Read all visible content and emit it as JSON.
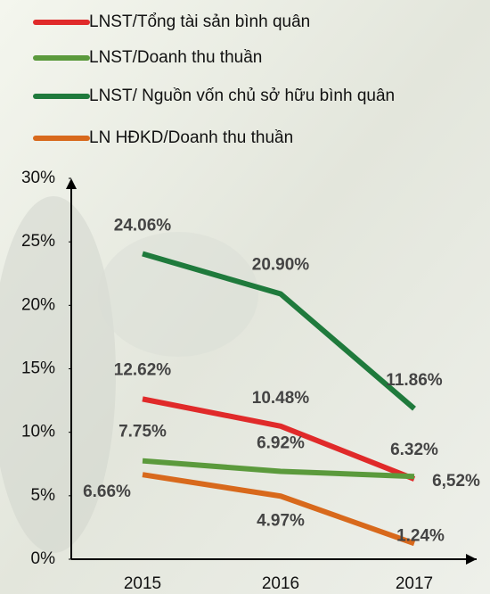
{
  "chart_data": {
    "type": "line",
    "categories": [
      "2015",
      "2016",
      "2017"
    ],
    "series": [
      {
        "name": "LNST/Tổng tài sản bình quân",
        "color": "#e02a2a",
        "values": [
          12.62,
          10.48,
          6.32
        ],
        "value_labels": [
          "12.62%",
          "10.48%",
          "6.32%"
        ]
      },
      {
        "name": "LNST/Doanh thu thuần",
        "color": "#5b9a3c",
        "values": [
          7.75,
          6.92,
          6.52
        ],
        "value_labels": [
          "7.75%",
          "6.92%",
          "6,52%"
        ]
      },
      {
        "name": "LNST/ Nguồn vốn chủ sở hữu bình quân",
        "color": "#1f7a3c",
        "values": [
          24.06,
          20.9,
          11.86
        ],
        "value_labels": [
          "24.06%",
          "20.90%",
          "11.86%"
        ]
      },
      {
        "name": "LN HĐKD/Doanh thu thuần",
        "color": "#d8691c",
        "values": [
          6.66,
          4.97,
          1.24
        ],
        "value_labels": [
          "6.66%",
          "4.97%",
          "1.24%"
        ]
      }
    ],
    "ylim": [
      0,
      30
    ],
    "yticks": [
      {
        "value": 0,
        "label": "0%"
      },
      {
        "value": 5,
        "label": "5%"
      },
      {
        "value": 10,
        "label": "10%"
      },
      {
        "value": 15,
        "label": "15%"
      },
      {
        "value": 20,
        "label": "20%"
      },
      {
        "value": 25,
        "label": "25%"
      },
      {
        "value": 30,
        "label": "30%"
      }
    ],
    "grid": false,
    "legend": "top"
  }
}
